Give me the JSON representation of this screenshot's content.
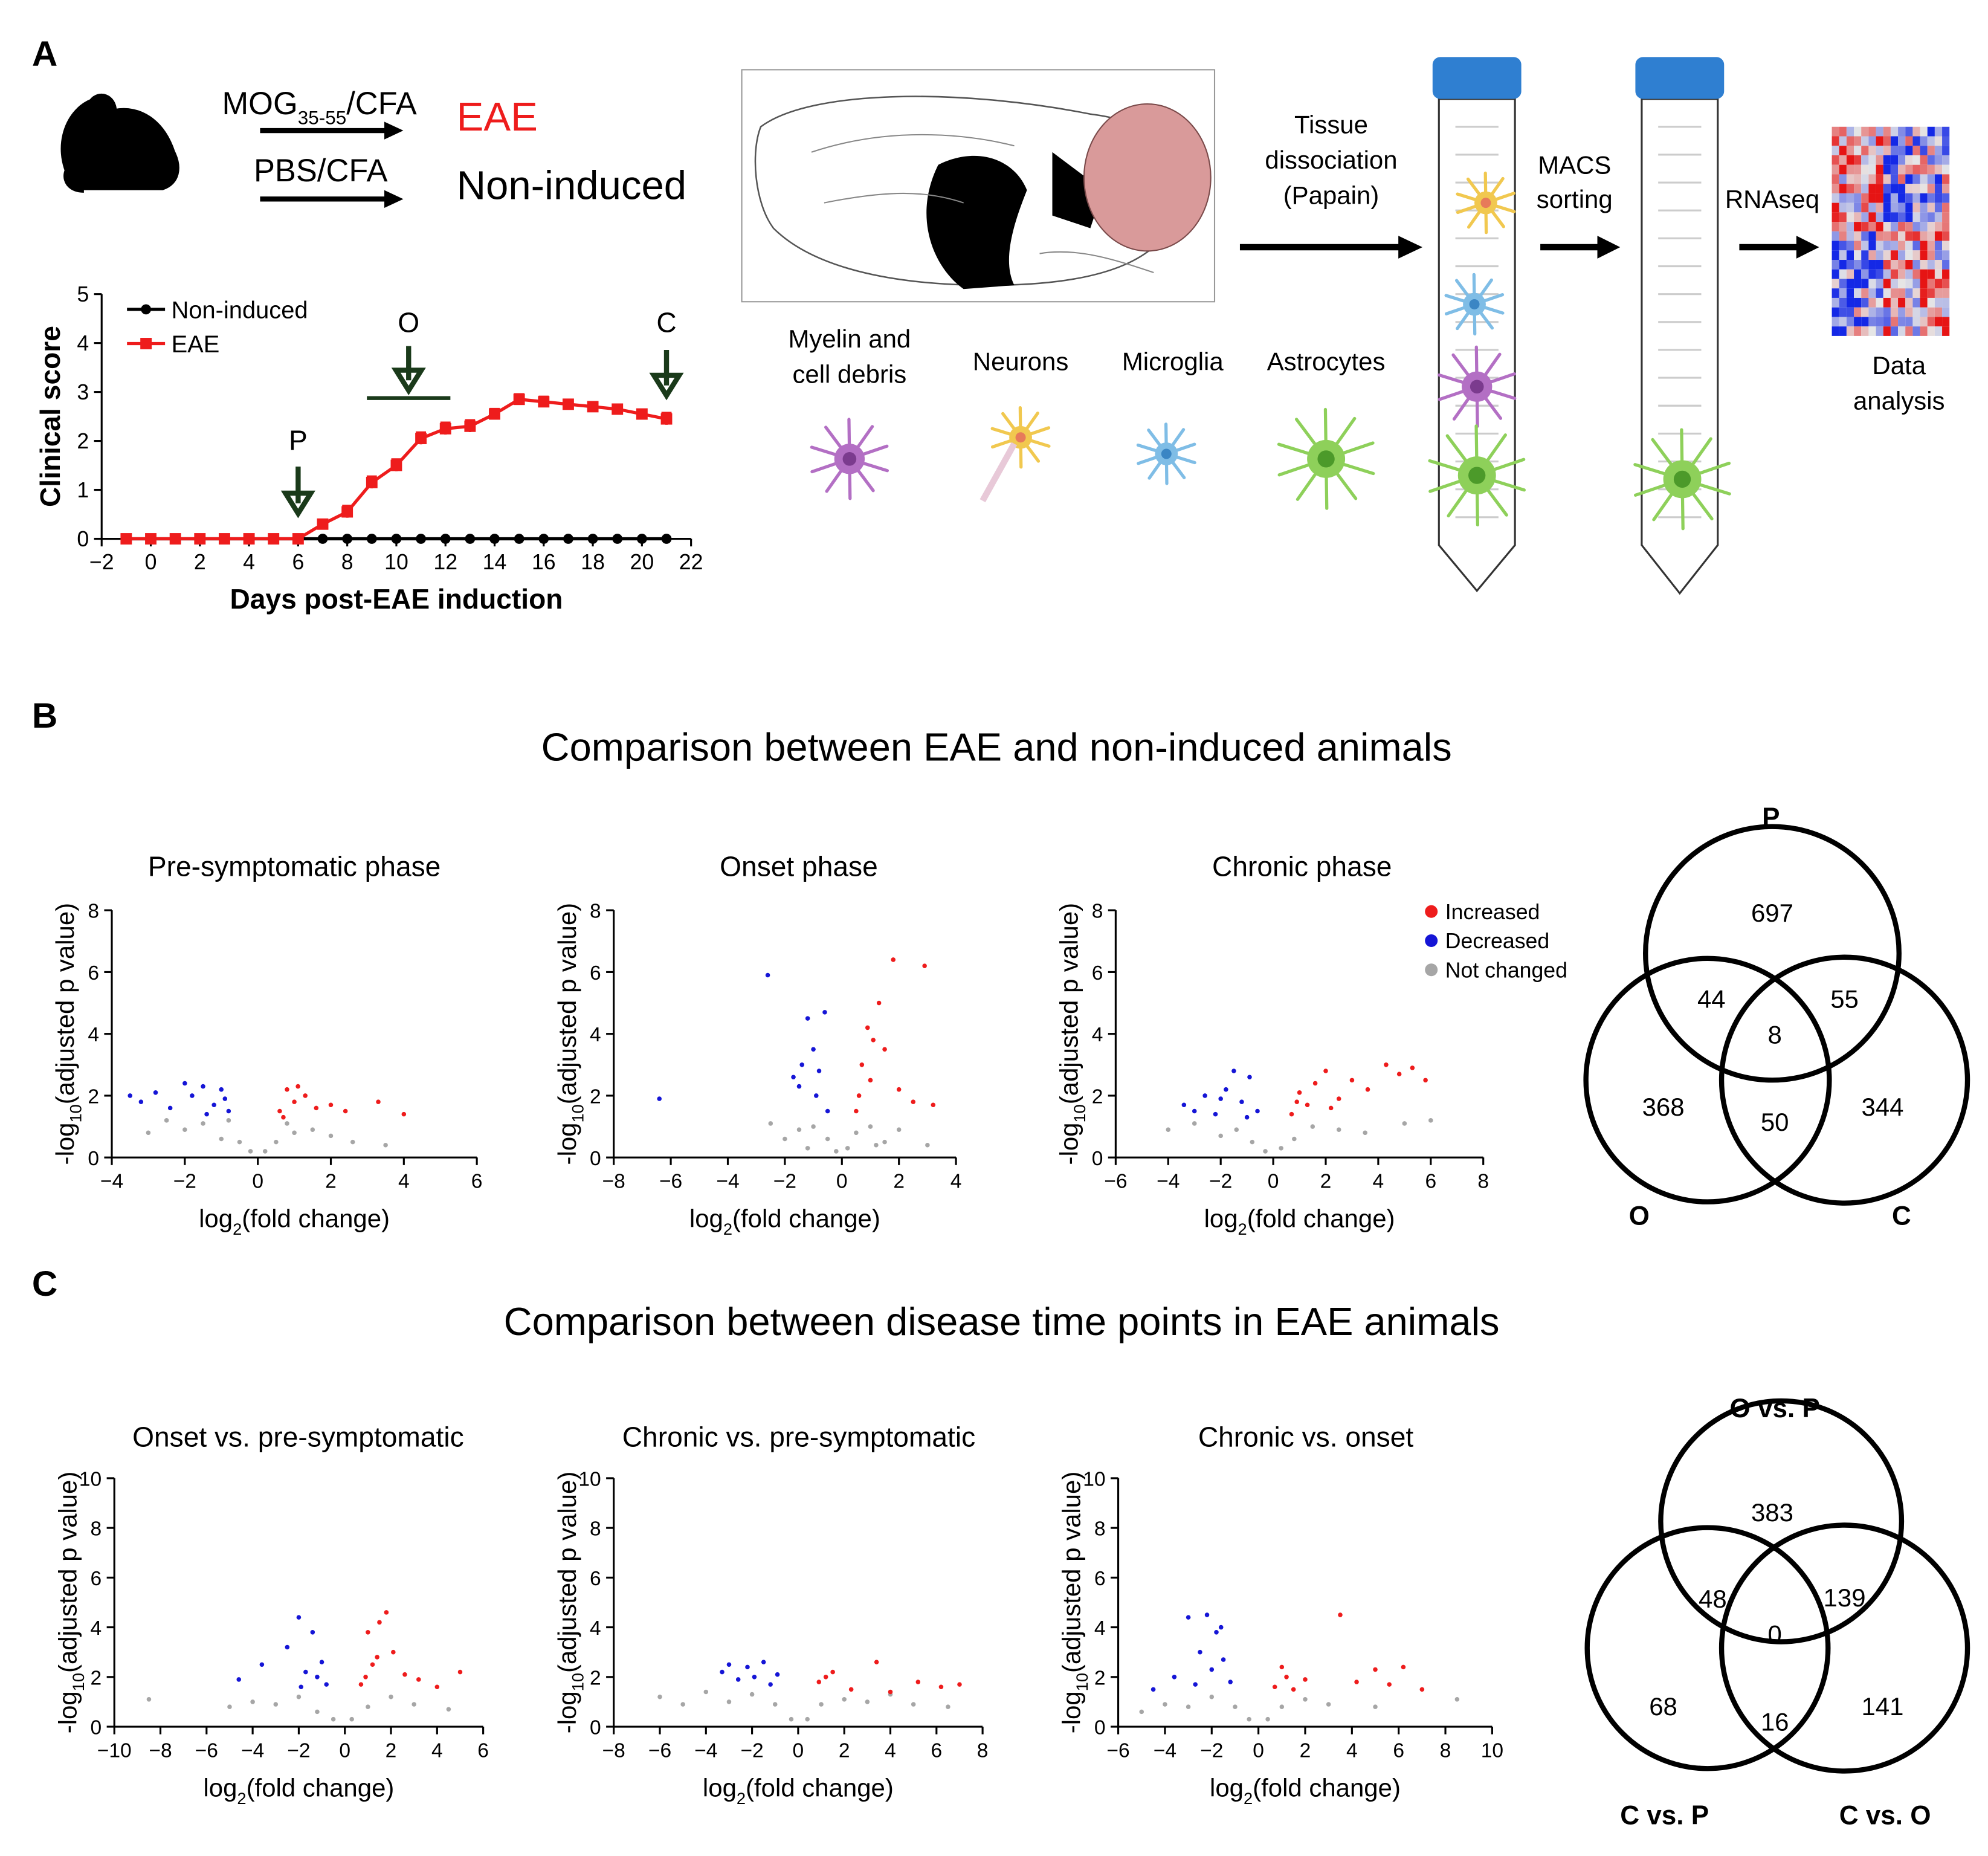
{
  "figure": {
    "panel_labels": [
      "A",
      "B",
      "C"
    ],
    "treatments": [
      {
        "agent": [
          "MOG",
          "35-55",
          "/CFA"
        ],
        "group": "EAE"
      },
      {
        "agent": [
          "PBS/CFA"
        ],
        "group": "Non-induced"
      }
    ],
    "steps": [
      [
        "Tissue",
        "dissociation",
        "(Papain)"
      ],
      [
        "MACS",
        "sorting"
      ],
      [
        "RNAseq"
      ]
    ],
    "cells": [
      [
        "Myelin and",
        "cell debris"
      ],
      [
        "Neurons"
      ],
      [
        "Microglia"
      ],
      [
        "Astrocytes"
      ]
    ],
    "data_analysis": [
      "Data",
      "analysis"
    ],
    "sections": [
      "Comparison between EAE and non-induced animals",
      "Comparison between disease time points in EAE animals"
    ]
  },
  "chart_data": [
    {
      "type": "line",
      "ylabel": "Clinical score",
      "xlabel": "Days post-EAE induction",
      "x": [
        -1,
        0,
        1,
        2,
        3,
        4,
        5,
        6,
        7,
        8,
        9,
        10,
        11,
        12,
        13,
        14,
        15,
        16,
        17,
        18,
        19,
        20,
        21
      ],
      "series": [
        {
          "name": "Non-induced",
          "color": "#000000",
          "marker": "circle",
          "values": [
            0,
            0,
            0,
            0,
            0,
            0,
            0,
            0,
            0,
            0,
            0,
            0,
            0,
            0,
            0,
            0,
            0,
            0,
            0,
            0,
            0,
            0,
            0
          ]
        },
        {
          "name": "EAE",
          "color": "#ee1c1c",
          "marker": "square",
          "values": [
            0,
            0,
            0,
            0,
            0,
            0,
            0,
            0,
            0.3,
            0.55,
            1.15,
            1.5,
            2.05,
            2.25,
            2.3,
            2.55,
            2.85,
            2.8,
            2.75,
            2.7,
            2.65,
            2.55,
            2.45
          ],
          "errors": [
            0,
            0,
            0,
            0,
            0,
            0,
            0,
            0,
            0.08,
            0.12,
            0.12,
            0.12,
            0.12,
            0.12,
            0.12,
            0.1,
            0.1,
            0.1,
            0.08,
            0.08,
            0.08,
            0.08,
            0.12
          ]
        }
      ],
      "xlim": [
        -2,
        22
      ],
      "ylim": [
        0,
        5
      ],
      "xticks": [
        {
          "value": -2,
          "label": "−2"
        },
        0,
        2,
        4,
        6,
        8,
        10,
        12,
        14,
        16,
        18,
        20,
        22
      ],
      "yticks": [
        0,
        1,
        2,
        3,
        4,
        5
      ],
      "annotations": [
        {
          "label": "P",
          "x": 6
        },
        {
          "label": "O",
          "x": 10.5,
          "xrange": [
            8.8,
            12.2
          ]
        },
        {
          "label": "C",
          "x": 21
        }
      ],
      "legend": "upper left"
    },
    {
      "type": "scatter",
      "title": "Pre-symptomatic phase",
      "ylabel": [
        "-log",
        "10",
        "(adjusted p value)"
      ],
      "xlabel": [
        "log",
        "2",
        "(fold change)"
      ],
      "xlim": [
        -4,
        6
      ],
      "ylim": [
        0,
        8
      ],
      "xticks": [
        {
          "value": -4,
          "label": "−4"
        },
        {
          "value": -2,
          "label": "−2"
        },
        0,
        2,
        4,
        6
      ],
      "yticks": [
        0,
        2,
        4,
        6,
        8
      ],
      "series": [
        {
          "color": "#ee1c1c",
          "x": [
            0.6,
            0.8,
            1.0,
            1.3,
            1.6,
            2.0,
            2.4,
            3.3,
            4.0,
            1.1,
            0.7
          ],
          "y": [
            1.5,
            2.2,
            1.8,
            2.0,
            1.6,
            1.7,
            1.5,
            1.8,
            1.4,
            2.3,
            1.3
          ]
        },
        {
          "color": "#1515d6",
          "x": [
            -3.5,
            -3.2,
            -2.8,
            -2.0,
            -1.8,
            -1.5,
            -1.2,
            -1.0,
            -0.8,
            -1.4,
            -0.9,
            -2.4
          ],
          "y": [
            2.0,
            1.8,
            2.1,
            2.4,
            2.0,
            2.3,
            1.7,
            2.2,
            1.5,
            1.4,
            1.9,
            1.6
          ]
        },
        {
          "color": "#a6a6a6",
          "x": [
            -3.0,
            -2.5,
            -2.0,
            -1.5,
            -1.0,
            -0.5,
            -0.2,
            0.2,
            0.5,
            1.0,
            1.5,
            2.0,
            2.6,
            3.5,
            -0.8,
            0.8
          ],
          "y": [
            0.8,
            1.2,
            0.9,
            1.1,
            0.6,
            0.5,
            0.2,
            0.2,
            0.5,
            0.8,
            0.9,
            0.7,
            0.5,
            0.4,
            1.2,
            1.1
          ]
        }
      ]
    },
    {
      "type": "scatter",
      "title": "Onset phase",
      "ylabel": [
        "-log",
        "10",
        "(adjusted p value)"
      ],
      "xlabel": [
        "log",
        "2",
        "(fold change)"
      ],
      "xlim": [
        -8,
        4
      ],
      "ylim": [
        0,
        8
      ],
      "xticks": [
        {
          "value": -8,
          "label": "−8"
        },
        {
          "value": -6,
          "label": "−6"
        },
        {
          "value": -4,
          "label": "−4"
        },
        {
          "value": -2,
          "label": "−2"
        },
        0,
        2,
        4
      ],
      "yticks": [
        0,
        2,
        4,
        6,
        8
      ],
      "series": [
        {
          "color": "#ee1c1c",
          "x": [
            0.5,
            0.7,
            0.9,
            1.0,
            1.3,
            1.5,
            1.8,
            2.0,
            2.5,
            2.9,
            3.2,
            1.1,
            0.6
          ],
          "y": [
            1.5,
            3.0,
            4.2,
            2.5,
            5.0,
            3.5,
            6.4,
            2.2,
            1.8,
            6.2,
            1.7,
            3.8,
            2.0
          ]
        },
        {
          "color": "#1515d6",
          "x": [
            -6.4,
            -2.6,
            -1.5,
            -1.2,
            -1.0,
            -0.8,
            -0.6,
            -1.4,
            -0.9,
            -0.5,
            -1.7
          ],
          "y": [
            1.9,
            5.9,
            2.3,
            4.5,
            3.5,
            2.8,
            4.7,
            3.0,
            2.0,
            1.5,
            2.6
          ]
        },
        {
          "color": "#a6a6a6",
          "x": [
            -2.5,
            -2.0,
            -1.5,
            -1.0,
            -0.5,
            -0.2,
            0.2,
            0.5,
            1.0,
            1.5,
            2.0,
            3.0,
            -1.2,
            1.2
          ],
          "y": [
            1.1,
            0.6,
            0.9,
            1.0,
            0.6,
            0.2,
            0.3,
            0.8,
            1.0,
            0.5,
            0.9,
            0.4,
            0.3,
            0.4
          ]
        }
      ]
    },
    {
      "type": "scatter",
      "title": "Chronic phase",
      "ylabel": [
        "-log",
        "10",
        "(adjusted p value)"
      ],
      "xlabel": [
        "log",
        "2",
        "(fold change)"
      ],
      "xlim": [
        -6,
        8
      ],
      "ylim": [
        0,
        8
      ],
      "xticks": [
        {
          "value": -6,
          "label": "−6"
        },
        {
          "value": -4,
          "label": "−4"
        },
        {
          "value": -2,
          "label": "−2"
        },
        0,
        2,
        4,
        6,
        8
      ],
      "yticks": [
        0,
        2,
        4,
        6,
        8
      ],
      "legend": "upper right",
      "series": [
        {
          "name": "Increased",
          "color": "#ee1c1c",
          "x": [
            0.7,
            1.0,
            1.3,
            1.6,
            2.0,
            2.5,
            3.0,
            3.6,
            4.3,
            4.8,
            5.3,
            5.8,
            2.2,
            0.9
          ],
          "y": [
            1.4,
            2.1,
            1.7,
            2.4,
            2.8,
            1.9,
            2.5,
            2.2,
            3.0,
            2.7,
            2.9,
            2.5,
            1.6,
            1.8
          ]
        },
        {
          "name": "Decreased",
          "color": "#1515d6",
          "x": [
            -3.4,
            -3.0,
            -2.6,
            -2.2,
            -1.8,
            -1.5,
            -1.2,
            -0.9,
            -0.6,
            -1.0,
            -2.0
          ],
          "y": [
            1.7,
            1.5,
            2.0,
            1.4,
            2.2,
            2.8,
            1.8,
            2.6,
            1.5,
            1.3,
            1.9
          ]
        },
        {
          "name": "Not changed",
          "color": "#a6a6a6",
          "x": [
            -4,
            -3,
            -2,
            -1.4,
            -0.8,
            -0.3,
            0.3,
            0.8,
            1.5,
            2.5,
            3.5,
            5.0,
            6.0
          ],
          "y": [
            0.9,
            1.1,
            0.7,
            0.9,
            0.5,
            0.2,
            0.3,
            0.6,
            1.0,
            0.9,
            0.8,
            1.1,
            1.2
          ]
        }
      ]
    },
    {
      "type": "venn",
      "sets": [
        "P",
        "O",
        "C"
      ],
      "regions": [
        697,
        44,
        55,
        8,
        368,
        344,
        50
      ]
    },
    {
      "type": "scatter",
      "title": "Onset vs. pre-symptomatic",
      "ylabel": [
        "-log",
        "10",
        "(adjusted p value)"
      ],
      "xlabel": [
        "log",
        "2",
        "(fold change)"
      ],
      "xlim": [
        -10,
        6
      ],
      "ylim": [
        0,
        10
      ],
      "xticks": [
        {
          "value": -10,
          "label": "−10"
        },
        {
          "value": -8,
          "label": "−8"
        },
        {
          "value": -6,
          "label": "−6"
        },
        {
          "value": -4,
          "label": "−4"
        },
        {
          "value": -2,
          "label": "−2"
        },
        0,
        2,
        4,
        6
      ],
      "yticks": [
        0,
        2,
        4,
        6,
        8,
        10
      ],
      "series": [
        {
          "color": "#ee1c1c",
          "x": [
            0.7,
            1.0,
            1.2,
            1.5,
            1.8,
            2.1,
            2.6,
            3.2,
            4.0,
            5.0,
            1.4,
            0.9
          ],
          "y": [
            1.7,
            3.8,
            2.5,
            4.2,
            4.6,
            3.0,
            2.1,
            1.9,
            1.6,
            2.2,
            2.8,
            2.0
          ]
        },
        {
          "color": "#1515d6",
          "x": [
            -4.6,
            -3.6,
            -2.5,
            -2.0,
            -1.7,
            -1.4,
            -1.0,
            -0.8,
            -1.9,
            -1.2
          ],
          "y": [
            1.9,
            2.5,
            3.2,
            4.4,
            2.2,
            3.8,
            2.6,
            1.7,
            1.6,
            2.0
          ]
        },
        {
          "color": "#a6a6a6",
          "x": [
            -8.5,
            -5,
            -4,
            -3,
            -2,
            -1.2,
            -0.5,
            0.3,
            1,
            2,
            3,
            4.5
          ],
          "y": [
            1.1,
            0.8,
            1.0,
            0.9,
            1.2,
            0.6,
            0.3,
            0.3,
            0.8,
            1.2,
            0.9,
            0.7
          ]
        }
      ]
    },
    {
      "type": "scatter",
      "title": "Chronic vs. pre-symptomatic",
      "ylabel": [
        "-log",
        "10",
        "(adjusted p value)"
      ],
      "xlabel": [
        "log",
        "2",
        "(fold change)"
      ],
      "xlim": [
        -8,
        8
      ],
      "ylim": [
        0,
        10
      ],
      "xticks": [
        {
          "value": -8,
          "label": "−8"
        },
        {
          "value": -6,
          "label": "−6"
        },
        {
          "value": -4,
          "label": "−4"
        },
        {
          "value": -2,
          "label": "−2"
        },
        0,
        2,
        4,
        6,
        8
      ],
      "yticks": [
        0,
        2,
        4,
        6,
        8,
        10
      ],
      "series": [
        {
          "color": "#ee1c1c",
          "x": [
            0.9,
            1.5,
            2.3,
            3.4,
            4.0,
            5.2,
            6.2,
            7.0,
            1.2
          ],
          "y": [
            1.8,
            2.2,
            1.5,
            2.6,
            1.4,
            1.8,
            1.6,
            1.7,
            2.0
          ]
        },
        {
          "color": "#1515d6",
          "x": [
            -3.3,
            -3.0,
            -2.6,
            -2.2,
            -1.9,
            -1.5,
            -1.2,
            -0.9
          ],
          "y": [
            2.2,
            2.5,
            1.9,
            2.4,
            2.0,
            2.6,
            1.7,
            2.1
          ]
        },
        {
          "color": "#a6a6a6",
          "x": [
            -6,
            -5,
            -4,
            -3,
            -2,
            -1,
            -0.3,
            0.4,
            1,
            2,
            3,
            4,
            5,
            6.5
          ],
          "y": [
            1.2,
            0.9,
            1.4,
            1.0,
            1.3,
            0.9,
            0.3,
            0.3,
            0.9,
            1.1,
            1.0,
            1.3,
            0.9,
            0.8
          ]
        }
      ]
    },
    {
      "type": "scatter",
      "title": "Chronic vs. onset",
      "ylabel": [
        "-log",
        "10",
        "(adjusted p value)"
      ],
      "xlabel": [
        "log",
        "2",
        "(fold change)"
      ],
      "xlim": [
        -6,
        10
      ],
      "ylim": [
        0,
        10
      ],
      "xticks": [
        {
          "value": -6,
          "label": "−6"
        },
        {
          "value": -4,
          "label": "−4"
        },
        {
          "value": -2,
          "label": "−2"
        },
        0,
        2,
        4,
        6,
        8,
        10
      ],
      "yticks": [
        0,
        2,
        4,
        6,
        8,
        10
      ],
      "series": [
        {
          "color": "#ee1c1c",
          "x": [
            0.7,
            1.0,
            1.5,
            2.0,
            3.5,
            4.2,
            5.0,
            5.6,
            6.2,
            7.0,
            1.2
          ],
          "y": [
            1.6,
            2.4,
            1.5,
            1.9,
            4.5,
            1.8,
            2.3,
            1.7,
            2.4,
            1.5,
            2.0
          ]
        },
        {
          "color": "#1515d6",
          "x": [
            -4.5,
            -3.6,
            -3.0,
            -2.5,
            -2.2,
            -2.0,
            -1.8,
            -1.5,
            -1.2,
            -2.7,
            -1.6
          ],
          "y": [
            1.5,
            2.0,
            4.4,
            3.0,
            4.5,
            2.3,
            3.8,
            2.7,
            1.8,
            1.7,
            4.0
          ]
        },
        {
          "color": "#a6a6a6",
          "x": [
            -5,
            -4,
            -3,
            -2,
            -1,
            -0.4,
            0.4,
            1,
            2,
            3,
            5,
            8.5
          ],
          "y": [
            0.6,
            0.9,
            0.8,
            1.2,
            0.8,
            0.3,
            0.3,
            0.8,
            1.1,
            0.9,
            0.8,
            1.1
          ]
        }
      ]
    },
    {
      "type": "venn",
      "sets": [
        "O vs. P",
        "C vs. P",
        "C vs. O"
      ],
      "regions": [
        383,
        48,
        139,
        0,
        68,
        141,
        16
      ]
    }
  ]
}
